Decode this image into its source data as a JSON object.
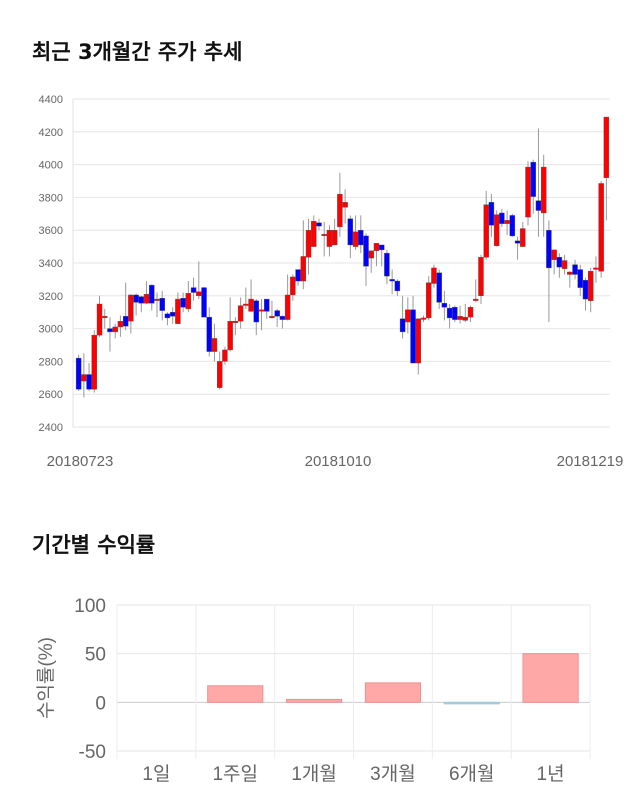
{
  "chart_data": [
    {
      "type": "candlestick",
      "title": "최근 3개월간 주가 추세",
      "ylim": [
        2400,
        4400
      ],
      "yticks": [
        2400,
        2600,
        2800,
        3000,
        3200,
        3400,
        3600,
        3800,
        4000,
        4200,
        4400
      ],
      "xtick_labels": [
        "20180723",
        "20181010",
        "20181219"
      ],
      "grid": true,
      "colors": {
        "up": "#ff0000",
        "down": "#0000ff",
        "wick": "#999999"
      },
      "ohlc": [
        [
          2820,
          2840,
          2620,
          2630
        ],
        [
          2680,
          2850,
          2580,
          2720
        ],
        [
          2720,
          2790,
          2620,
          2630
        ],
        [
          2630,
          2990,
          2610,
          2960
        ],
        [
          2960,
          3200,
          2950,
          3150
        ],
        [
          3075,
          3120,
          3000,
          3075
        ],
        [
          3000,
          3070,
          2860,
          2980
        ],
        [
          2980,
          3030,
          2940,
          3010
        ],
        [
          3010,
          3080,
          2950,
          3045
        ],
        [
          3075,
          3280,
          2990,
          3015
        ],
        [
          3045,
          3210,
          2970,
          3205
        ],
        [
          3205,
          3215,
          3080,
          3160
        ],
        [
          3195,
          3200,
          3100,
          3155
        ],
        [
          3155,
          3290,
          3150,
          3210
        ],
        [
          3265,
          3270,
          3110,
          3155
        ],
        [
          3180,
          3220,
          3070,
          3180
        ],
        [
          3185,
          3230,
          3050,
          3110
        ],
        [
          3090,
          3100,
          3020,
          3065
        ],
        [
          3100,
          3130,
          3030,
          3075
        ],
        [
          3030,
          3220,
          3030,
          3180
        ],
        [
          3185,
          3220,
          3100,
          3130
        ],
        [
          3120,
          3290,
          3100,
          3215
        ],
        [
          3250,
          3310,
          3170,
          3220
        ],
        [
          3200,
          3410,
          3180,
          3225
        ],
        [
          3250,
          3255,
          3070,
          3070
        ],
        [
          3070,
          3130,
          2830,
          2860
        ],
        [
          2860,
          3030,
          2800,
          2940
        ],
        [
          2640,
          2860,
          2630,
          2800
        ],
        [
          2800,
          2890,
          2780,
          2870
        ],
        [
          2870,
          3190,
          2860,
          3045
        ],
        [
          3045,
          3070,
          2960,
          3045
        ],
        [
          3045,
          3190,
          3000,
          3140
        ],
        [
          3150,
          3250,
          3120,
          3150
        ],
        [
          3105,
          3300,
          3100,
          3180
        ],
        [
          3170,
          3180,
          2960,
          3040
        ],
        [
          3115,
          3180,
          2990,
          3115
        ],
        [
          3180,
          3180,
          3060,
          3105
        ],
        [
          3075,
          3170,
          3060,
          3075
        ],
        [
          3110,
          3120,
          3010,
          3075
        ],
        [
          3075,
          3080,
          3000,
          3055
        ],
        [
          3055,
          3330,
          3050,
          3205
        ],
        [
          3205,
          3330,
          3170,
          3315
        ],
        [
          3360,
          3360,
          3260,
          3290
        ],
        [
          3290,
          3660,
          3240,
          3440
        ],
        [
          3435,
          3670,
          3330,
          3600
        ],
        [
          3500,
          3690,
          3500,
          3655
        ],
        [
          3645,
          3670,
          3600,
          3625
        ],
        [
          3575,
          3650,
          3440,
          3575
        ],
        [
          3500,
          3630,
          3440,
          3600
        ],
        [
          3510,
          3670,
          3510,
          3600
        ],
        [
          3620,
          3950,
          3560,
          3820
        ],
        [
          3740,
          3850,
          3640,
          3770
        ],
        [
          3670,
          3690,
          3430,
          3510
        ],
        [
          3500,
          3690,
          3480,
          3590
        ],
        [
          3600,
          3690,
          3460,
          3510
        ],
        [
          3565,
          3580,
          3260,
          3380
        ],
        [
          3430,
          3460,
          3340,
          3475
        ],
        [
          3475,
          3520,
          3380,
          3520
        ],
        [
          3510,
          3510,
          3380,
          3480
        ],
        [
          3460,
          3480,
          3270,
          3320
        ],
        [
          3300,
          3360,
          3210,
          3290
        ],
        [
          3290,
          3300,
          3200,
          3230
        ],
        [
          3060,
          3200,
          2940,
          2980
        ],
        [
          3040,
          3190,
          2970,
          3115
        ],
        [
          3115,
          3200,
          2790,
          2790
        ],
        [
          2790,
          3060,
          2720,
          3060
        ],
        [
          3065,
          3080,
          3040,
          3065
        ],
        [
          3065,
          3320,
          3050,
          3280
        ],
        [
          3275,
          3390,
          3250,
          3370
        ],
        [
          3340,
          3360,
          3120,
          3160
        ],
        [
          3155,
          3230,
          3050,
          3130
        ],
        [
          3125,
          3150,
          3000,
          3065
        ],
        [
          3130,
          3140,
          3040,
          3055
        ],
        [
          3055,
          3140,
          3030,
          3075
        ],
        [
          3050,
          3150,
          3040,
          3070
        ],
        [
          3070,
          3140,
          3040,
          3130
        ],
        [
          3180,
          3300,
          3160,
          3180
        ],
        [
          3200,
          3450,
          3150,
          3435
        ],
        [
          3435,
          3840,
          3420,
          3755
        ],
        [
          3770,
          3820,
          3560,
          3630
        ],
        [
          3505,
          3720,
          3500,
          3695
        ],
        [
          3705,
          3730,
          3620,
          3640
        ],
        [
          3640,
          3720,
          3570,
          3660
        ],
        [
          3690,
          3700,
          3560,
          3565
        ],
        [
          3535,
          3560,
          3420,
          3520
        ],
        [
          3500,
          3650,
          3500,
          3610
        ],
        [
          3680,
          4020,
          3630,
          3985
        ],
        [
          4015,
          4030,
          3700,
          3805
        ],
        [
          3780,
          4220,
          3560,
          3720
        ],
        [
          3705,
          4060,
          3560,
          3985
        ],
        [
          3600,
          3660,
          3040,
          3370
        ],
        [
          3420,
          3470,
          3330,
          3480
        ],
        [
          3435,
          3460,
          3310,
          3375
        ],
        [
          3365,
          3450,
          3330,
          3415
        ],
        [
          3330,
          3350,
          3250,
          3345
        ],
        [
          3390,
          3420,
          3300,
          3330
        ],
        [
          3360,
          3390,
          3200,
          3250
        ],
        [
          3295,
          3310,
          3110,
          3180
        ],
        [
          3170,
          3370,
          3100,
          3350
        ],
        [
          3370,
          3440,
          3280,
          3370
        ],
        [
          3350,
          3900,
          3310,
          3885
        ],
        [
          3920,
          4290,
          3660,
          4290
        ]
      ]
    },
    {
      "type": "bar",
      "title": "기간별 수익률",
      "ylabel": "수익률(%)",
      "ylim": [
        -50,
        100
      ],
      "yticks": [
        100,
        50,
        0,
        -50
      ],
      "categories": [
        "1일",
        "1주일",
        "1개월",
        "3개월",
        "6개월",
        "1년"
      ],
      "values": [
        0,
        17,
        3,
        20,
        -1,
        50
      ],
      "colors": {
        "positive": "#ffa8a8",
        "negative": "#a8dce8"
      },
      "grid": true
    }
  ]
}
